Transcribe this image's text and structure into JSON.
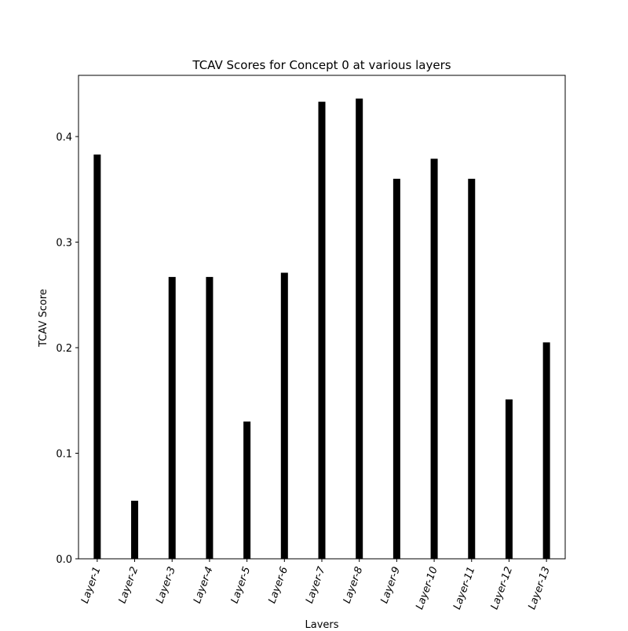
{
  "chart_data": {
    "type": "bar",
    "title": "TCAV Scores for Concept 0 at various layers",
    "xlabel": "Layers",
    "ylabel": "TCAV Score",
    "categories": [
      "Layer-1",
      "Layer-2",
      "Layer-3",
      "Layer-4",
      "Layer-5",
      "Layer-6",
      "Layer-7",
      "Layer-8",
      "Layer-9",
      "Layer-10",
      "Layer-11",
      "Layer-12",
      "Layer-13"
    ],
    "values": [
      0.383,
      0.055,
      0.267,
      0.267,
      0.13,
      0.271,
      0.433,
      0.436,
      0.36,
      0.379,
      0.36,
      0.151,
      0.205
    ],
    "ylim": [
      0,
      0.458
    ],
    "yticks": [
      0.0,
      0.1,
      0.2,
      0.3,
      0.4
    ],
    "ytick_labels": [
      "0.0",
      "0.1",
      "0.2",
      "0.3",
      "0.4"
    ],
    "bar_color": "#000000",
    "grid": false,
    "legend": "none"
  }
}
